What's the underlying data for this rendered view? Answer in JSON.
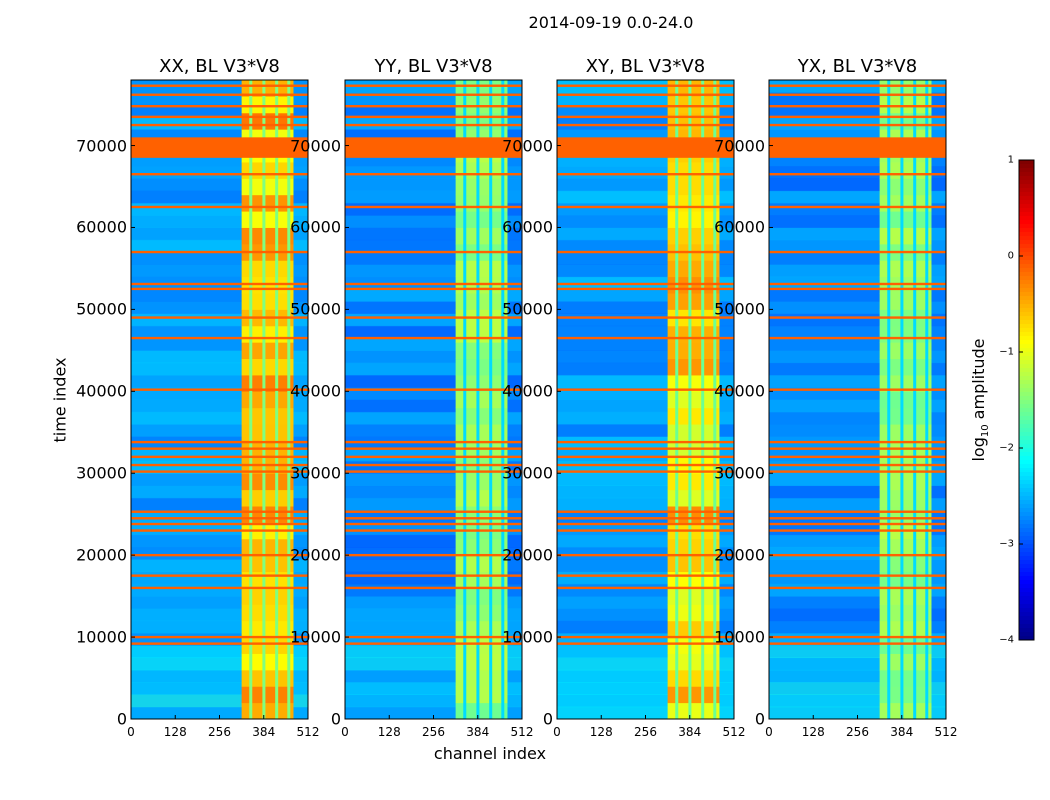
{
  "chart_data": {
    "type": "heatmap",
    "title": "2014-09-19 0.0-24.0",
    "xlabel": "channel index",
    "ylabel": "time index",
    "xlim": [
      0,
      512
    ],
    "ylim": [
      0,
      78000
    ],
    "xticks": [
      "0",
      "128",
      "256",
      "384",
      "512"
    ],
    "yticks": [
      "0",
      "10000",
      "20000",
      "30000",
      "40000",
      "50000",
      "60000",
      "70000"
    ],
    "colorbar": {
      "label": "log10 amplitude",
      "label_main": "log",
      "label_sub": "10",
      "label_rest": " amplitude",
      "range": [
        -4,
        1
      ],
      "ticks": [
        "1",
        "0",
        "−1",
        "−2",
        "−3",
        "−4"
      ],
      "colormap": "jet"
    },
    "panels": [
      {
        "title": "XX, BL V3*V8",
        "background_log_amp": -2.6,
        "band_channels": [
          320,
          470
        ],
        "band_log_amp": -0.6,
        "band_hot": true
      },
      {
        "title": "YY, BL V3*V8",
        "background_log_amp": -2.7,
        "band_channels": [
          320,
          470
        ],
        "band_log_amp": -1.4,
        "band_hot": false
      },
      {
        "title": "XY, BL V3*V8",
        "background_log_amp": -2.6,
        "band_channels": [
          320,
          470
        ],
        "band_log_amp": -0.7,
        "band_hot": true
      },
      {
        "title": "YX, BL V3*V8",
        "background_log_amp": -2.7,
        "band_channels": [
          320,
          470
        ],
        "band_log_amp": -1.4,
        "band_hot": false
      }
    ],
    "band_gap_channels": [
      345,
      383,
      420,
      455
    ],
    "rfi_rows": [
      9200,
      10000,
      16000,
      17500,
      20000,
      23000,
      23800,
      24500,
      25300,
      30200,
      31000,
      32000,
      33000,
      33800,
      40200,
      46500,
      49000,
      52500,
      53100,
      57000,
      62500,
      66500,
      72500,
      73500,
      74800,
      76200,
      77300
    ],
    "rfi_block": [
      68500,
      71000
    ],
    "rfi_log_amp": -0.1
  }
}
